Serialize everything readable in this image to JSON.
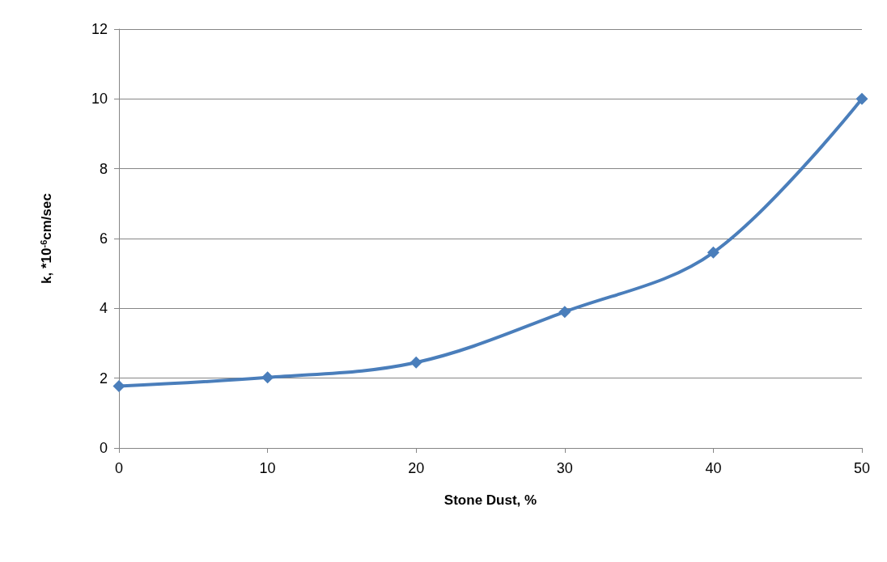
{
  "chart_data": {
    "type": "line",
    "xlabel": "Stone Dust, %",
    "ylabel": "k, *10$^{-6}$cm/sec",
    "x": [
      0,
      10,
      20,
      30,
      40,
      50
    ],
    "series": [
      {
        "color": "#4a7ebb",
        "values": [
          1.77,
          2.02,
          2.45,
          3.9,
          5.6,
          10
        ]
      }
    ],
    "xlim": [
      0,
      50
    ],
    "xticks": [
      0,
      10,
      20,
      30,
      40,
      50
    ],
    "ylim": [
      0,
      12
    ],
    "yticks": [
      0,
      2,
      4,
      6,
      8,
      10,
      12
    ],
    "grid": "y",
    "marker": "diamond",
    "line_style": "solid"
  }
}
